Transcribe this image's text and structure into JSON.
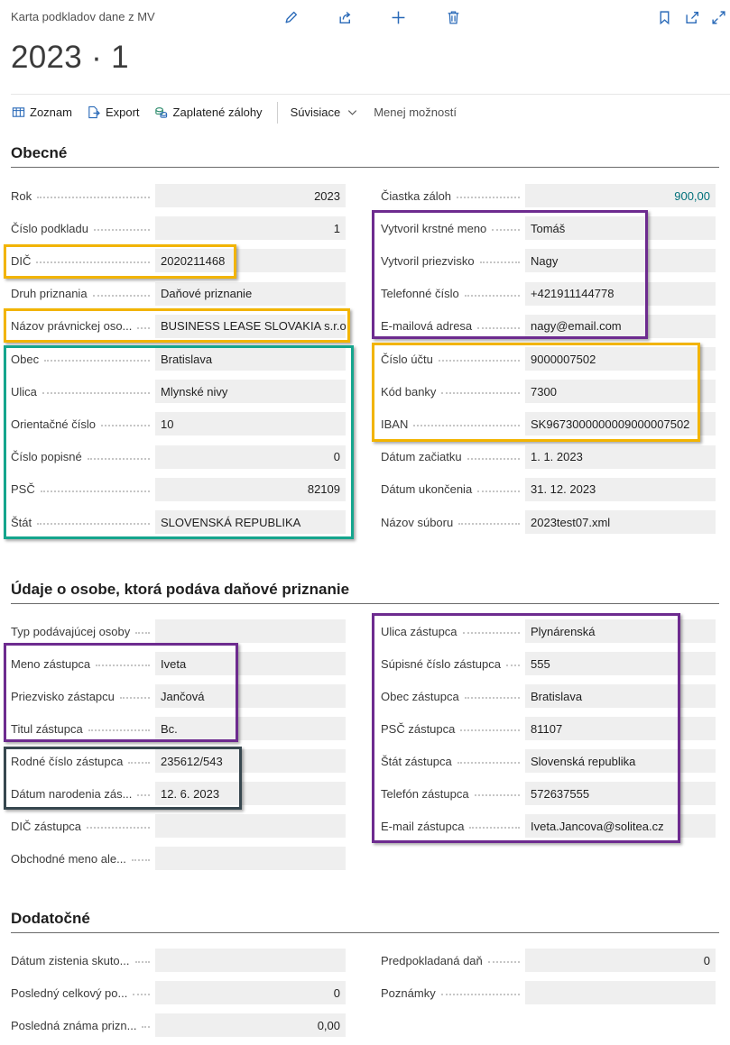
{
  "header": {
    "caption": "Karta podkladov dane z MV",
    "title": "2023 · 1",
    "icons": [
      "edit-icon",
      "share-icon",
      "add-icon",
      "delete-icon",
      "bookmark-icon",
      "open-new-window-icon",
      "expand-icon"
    ]
  },
  "actions": {
    "list": "Zoznam",
    "export": "Export",
    "paid": "Zaplatené zálohy",
    "related": "Súvisiace",
    "less": "Menej možností"
  },
  "sections": {
    "general": "Obecné",
    "person": "Údaje o osobe, ktorá podáva daňové priznanie",
    "additional": "Dodatočné"
  },
  "general_left": [
    {
      "label": "Rok",
      "value": "2023",
      "align": "right"
    },
    {
      "label": "Číslo podkladu",
      "value": "1",
      "align": "right"
    },
    {
      "label": "DIČ",
      "value": "2020211468",
      "align": "left"
    },
    {
      "label": "Druh priznania",
      "value": "Daňové priznanie",
      "align": "left"
    },
    {
      "label": "Názov právnickej oso...",
      "value": "BUSINESS LEASE SLOVAKIA s.r.o.",
      "align": "left"
    },
    {
      "label": "Obec",
      "value": "Bratislava",
      "align": "left"
    },
    {
      "label": "Ulica",
      "value": "Mlynské nivy",
      "align": "left"
    },
    {
      "label": "Orientačné číslo",
      "value": "10",
      "align": "left"
    },
    {
      "label": "Číslo popisné",
      "value": "0",
      "align": "right"
    },
    {
      "label": "PSČ",
      "value": "82109",
      "align": "right"
    },
    {
      "label": "Štát",
      "value": "SLOVENSKÁ REPUBLIKA",
      "align": "left"
    }
  ],
  "general_right": [
    {
      "label": "Čiastka záloh",
      "value": "900,00",
      "align": "right",
      "accent": true
    },
    {
      "label": "Vytvoril krstné meno",
      "value": "Tomáš",
      "align": "left"
    },
    {
      "label": "Vytvoril priezvisko",
      "value": "Nagy",
      "align": "left"
    },
    {
      "label": "Telefonné číslo",
      "value": "+421911144778",
      "align": "left"
    },
    {
      "label": "E-mailová adresa",
      "value": "nagy@email.com",
      "align": "left"
    },
    {
      "label": "Číslo účtu",
      "value": "9000007502",
      "align": "left"
    },
    {
      "label": "Kód banky",
      "value": "7300",
      "align": "left"
    },
    {
      "label": "IBAN",
      "value": "SK9673000000009000007502",
      "align": "left"
    },
    {
      "label": "Dátum začiatku",
      "value": "1. 1. 2023",
      "align": "left"
    },
    {
      "label": "Dátum ukončenia",
      "value": "31. 12. 2023",
      "align": "left"
    },
    {
      "label": "Názov súboru",
      "value": "2023test07.xml",
      "align": "left"
    }
  ],
  "person_left": [
    {
      "label": "Typ podávajúcej osoby",
      "value": "",
      "align": "left"
    },
    {
      "label": "Meno zástupca",
      "value": "Iveta",
      "align": "left"
    },
    {
      "label": "Priezvisko zástapcu",
      "value": "Jančová",
      "align": "left"
    },
    {
      "label": "Titul zástupca",
      "value": "Bc.",
      "align": "left"
    },
    {
      "label": "Rodné číslo zástupca",
      "value": "235612/543",
      "align": "left"
    },
    {
      "label": "Dátum narodenia zás...",
      "value": "12. 6. 2023",
      "align": "left"
    },
    {
      "label": "DIČ zástupca",
      "value": "",
      "align": "left"
    },
    {
      "label": "Obchodné meno ale...",
      "value": "",
      "align": "left"
    }
  ],
  "person_right": [
    {
      "label": "Ulica zástupca",
      "value": "Plynárenská",
      "align": "left"
    },
    {
      "label": "Súpisné číslo zástupca",
      "value": "555",
      "align": "left"
    },
    {
      "label": "Obec zástupca",
      "value": "Bratislava",
      "align": "left"
    },
    {
      "label": "PSČ zástupca",
      "value": "81107",
      "align": "left"
    },
    {
      "label": "Štát zástupca",
      "value": "Slovenská republika",
      "align": "left"
    },
    {
      "label": "Telefón zástupca",
      "value": "572637555",
      "align": "left"
    },
    {
      "label": "E-mail zástupca",
      "value": "Iveta.Jancova@solitea.cz",
      "align": "left"
    }
  ],
  "additional_left": [
    {
      "label": "Dátum zistenia skuto...",
      "value": "",
      "align": "left"
    },
    {
      "label": "Posledný celkový po...",
      "value": "0",
      "align": "right"
    },
    {
      "label": "Posledná známa prizn...",
      "value": "0,00",
      "align": "right"
    }
  ],
  "additional_right": [
    {
      "label": "Predpokladaná daň",
      "value": "0",
      "align": "right"
    },
    {
      "label": "Poznámky",
      "value": "",
      "align": "left"
    }
  ],
  "colors": {
    "highlight_orange": "#f2b400",
    "highlight_purple": "#6d2b8f",
    "highlight_teal": "#15a58d",
    "highlight_dark": "#37474f",
    "amount_accent": "#00707a"
  }
}
